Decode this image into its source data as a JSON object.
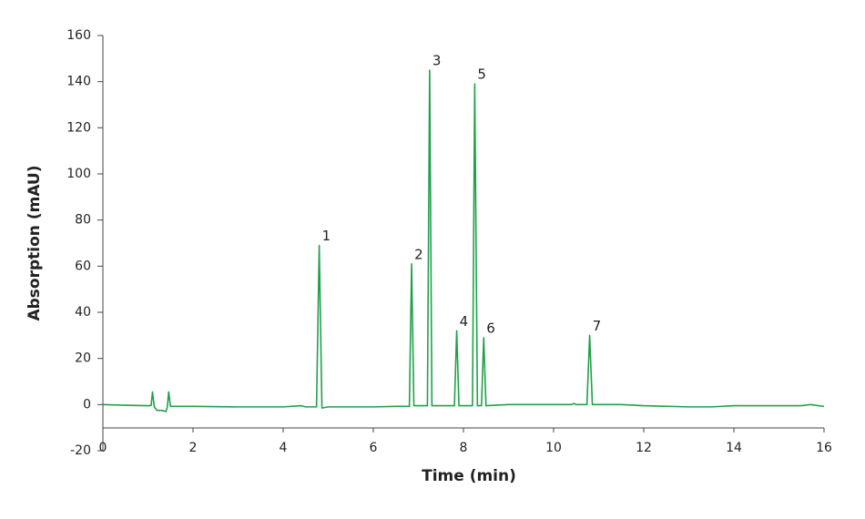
{
  "chart_data": {
    "type": "line",
    "xlabel": "Time (min)",
    "ylabel": "Absorption (mAU)",
    "color": "#20a04a",
    "xlim": [
      0,
      16
    ],
    "xticks": [
      0,
      2,
      4,
      6,
      8,
      10,
      12,
      14,
      16
    ],
    "ylim": [
      -20,
      160
    ],
    "yticks": [
      -20,
      0,
      20,
      40,
      60,
      80,
      100,
      120,
      140,
      160
    ],
    "x": [
      0,
      0.5,
      1.0,
      1.07,
      1.1,
      1.14,
      1.2,
      1.3,
      1.4,
      1.43,
      1.46,
      1.5,
      2,
      3,
      4,
      4.4,
      4.5,
      4.74,
      4.8,
      4.86,
      5,
      6,
      6.5,
      6.8,
      6.85,
      6.9,
      7.2,
      7.25,
      7.3,
      7.8,
      7.85,
      7.9,
      8.2,
      8.25,
      8.31,
      8.4,
      8.45,
      8.5,
      9,
      10,
      10.4,
      10.45,
      10.5,
      10.74,
      10.8,
      10.86,
      11,
      11.5,
      12,
      13,
      13.5,
      14,
      15,
      15.5,
      15.7,
      15.8,
      16
    ],
    "values": [
      0,
      -0.3,
      -0.5,
      -0.4,
      5.5,
      -1,
      -2.5,
      -2.5,
      -3,
      -1,
      5.5,
      -0.8,
      -0.8,
      -1,
      -1,
      -0.5,
      -1,
      -1,
      69,
      -1.5,
      -1,
      -1,
      -0.8,
      -0.8,
      61,
      -0.5,
      -0.5,
      145,
      -0.5,
      -0.5,
      32,
      -0.5,
      -0.5,
      139,
      -0.5,
      -0.5,
      29,
      -0.5,
      0,
      0,
      0,
      0.5,
      0,
      0,
      30,
      0,
      0,
      0,
      -0.5,
      -1,
      -1,
      -0.5,
      -0.5,
      -0.5,
      0,
      -0.3,
      -0.8
    ],
    "annotations": [
      {
        "text": "1",
        "x": 4.8,
        "y": 69
      },
      {
        "text": "2",
        "x": 6.85,
        "y": 61
      },
      {
        "text": "3",
        "x": 7.25,
        "y": 145
      },
      {
        "text": "4",
        "x": 7.85,
        "y": 32
      },
      {
        "text": "5",
        "x": 8.25,
        "y": 139
      },
      {
        "text": "6",
        "x": 8.45,
        "y": 29
      },
      {
        "text": "7",
        "x": 10.8,
        "y": 30
      }
    ]
  }
}
